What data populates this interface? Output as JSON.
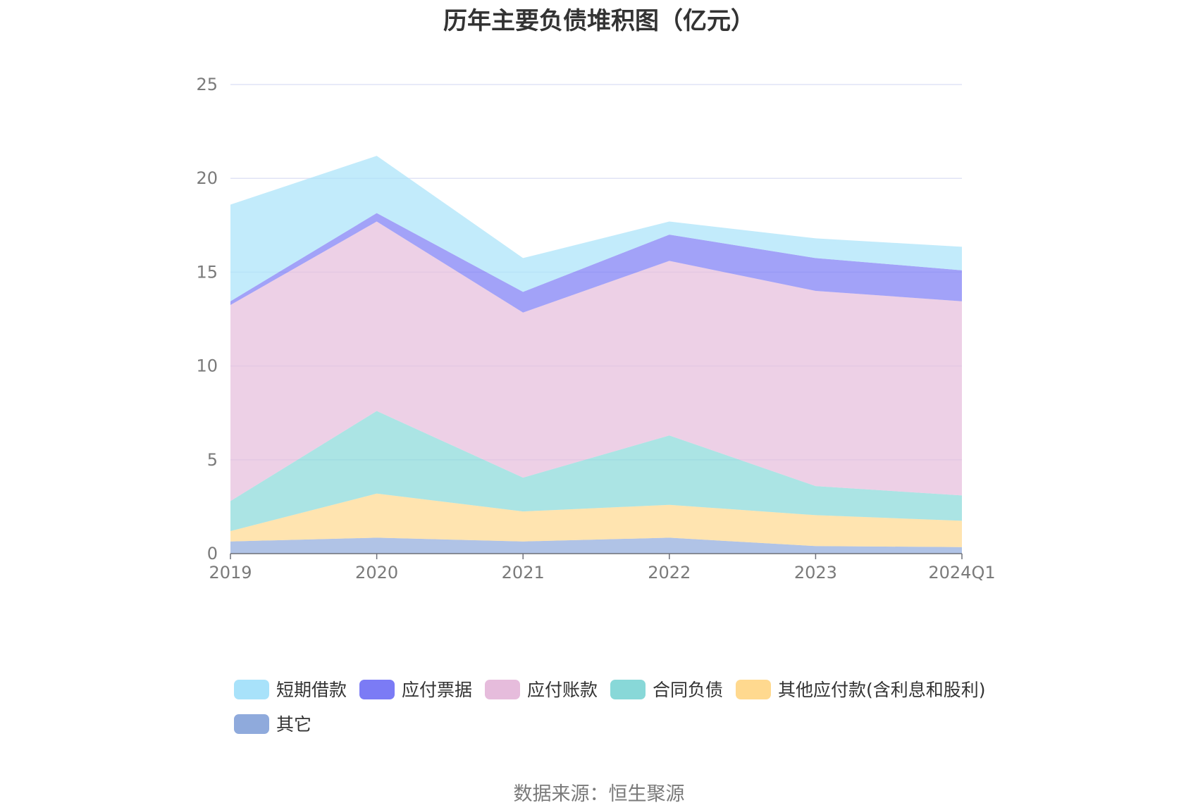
{
  "chart_data": {
    "type": "area",
    "stacked": true,
    "title": "历年主要负债堆积图（亿元）",
    "categories": [
      "2019",
      "2020",
      "2021",
      "2022",
      "2023",
      "2024Q1"
    ],
    "ylim": [
      0,
      25
    ],
    "yticks": [
      0,
      5,
      10,
      15,
      20,
      25
    ],
    "grid": true,
    "legend_position": "bottom",
    "series": [
      {
        "name": "其它",
        "color": "#8faadc",
        "values": [
          0.65,
          0.85,
          0.65,
          0.85,
          0.4,
          0.35
        ]
      },
      {
        "name": "其他应付款(含利息和股利)",
        "color": "#ffd98f",
        "values": [
          0.55,
          2.35,
          1.6,
          1.75,
          1.65,
          1.4
        ]
      },
      {
        "name": "合同负债",
        "color": "#88d8d8",
        "values": [
          1.6,
          4.4,
          1.8,
          3.7,
          1.55,
          1.35
        ]
      },
      {
        "name": "应付账款",
        "color": "#e6bcdc",
        "values": [
          10.45,
          10.1,
          8.8,
          9.3,
          10.4,
          10.35
        ]
      },
      {
        "name": "应付票据",
        "color": "#7b7bf5",
        "values": [
          0.2,
          0.45,
          1.1,
          1.4,
          1.75,
          1.65
        ]
      },
      {
        "name": "短期借款",
        "color": "#a8e2fa",
        "values": [
          5.15,
          3.05,
          1.8,
          0.7,
          1.05,
          1.25
        ]
      }
    ],
    "legend_order": [
      "短期借款",
      "应付票据",
      "应付账款",
      "合同负债",
      "其他应付款(含利息和股利)",
      "其它"
    ]
  },
  "source": "数据来源：恒生聚源"
}
